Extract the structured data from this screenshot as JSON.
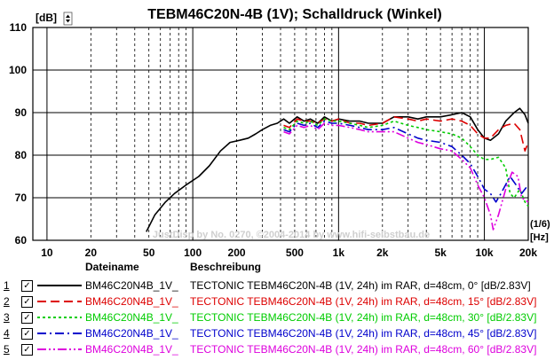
{
  "title": "TEBM46C20N-4B (1V); Schalldruck (Winkel)",
  "y_unit": "[dB]",
  "x_unit_top": "(1/6)",
  "x_unit_bottom": "[Hz]",
  "watermark": "JustDisp by No. 0270, ©2004-2014 by www.hifi-selbstbau.de",
  "legend_header": {
    "name": "Dateiname",
    "desc": "Beschreibung"
  },
  "chart_data": {
    "type": "line",
    "title": "TEBM46C20N-4B (1V); Schalldruck (Winkel)",
    "xlabel": "[Hz]",
    "ylabel": "[dB]",
    "xscale": "log",
    "xlim": [
      8,
      20000
    ],
    "ylim": [
      60,
      110
    ],
    "x_ticks": [
      {
        "v": 10,
        "label": "10"
      },
      {
        "v": 20,
        "label": "20"
      },
      {
        "v": 50,
        "label": "50"
      },
      {
        "v": 100,
        "label": "100"
      },
      {
        "v": 200,
        "label": "200"
      },
      {
        "v": 500,
        "label": "500"
      },
      {
        "v": 1000,
        "label": "1k"
      },
      {
        "v": 2000,
        "label": "2k"
      },
      {
        "v": 5000,
        "label": "5k"
      },
      {
        "v": 10000,
        "label": "10k"
      },
      {
        "v": 20000,
        "label": "20k"
      }
    ],
    "y_ticks": [
      60,
      70,
      80,
      90,
      100,
      110
    ],
    "grid": true,
    "series": [
      {
        "name": "BM46C20N4B_1V_",
        "description": "TECTONIC TEBM46C20N-4B (1V, 24h) im RAR, d=48cm, 0° [dB/2.83V]",
        "index": "1",
        "color": "#000000",
        "dash": "",
        "points": [
          [
            48,
            62
          ],
          [
            55,
            66
          ],
          [
            65,
            69
          ],
          [
            75,
            71
          ],
          [
            90,
            73
          ],
          [
            110,
            75
          ],
          [
            130,
            77.5
          ],
          [
            155,
            81
          ],
          [
            180,
            83
          ],
          [
            210,
            83.5
          ],
          [
            240,
            84
          ],
          [
            270,
            85
          ],
          [
            300,
            86
          ],
          [
            340,
            87
          ],
          [
            380,
            87.5
          ],
          [
            420,
            88.5
          ],
          [
            460,
            87.5
          ],
          [
            520,
            89
          ],
          [
            580,
            88
          ],
          [
            640,
            88.5
          ],
          [
            720,
            87.5
          ],
          [
            800,
            89
          ],
          [
            900,
            88
          ],
          [
            1000,
            88.5
          ],
          [
            1200,
            88
          ],
          [
            1400,
            88
          ],
          [
            1600,
            87.5
          ],
          [
            2000,
            87.5
          ],
          [
            2400,
            89
          ],
          [
            3000,
            89
          ],
          [
            3500,
            88.5
          ],
          [
            4000,
            89
          ],
          [
            5000,
            89
          ],
          [
            6000,
            89.5
          ],
          [
            7000,
            90
          ],
          [
            8000,
            89
          ],
          [
            9000,
            86
          ],
          [
            10000,
            84
          ],
          [
            11000,
            83.5
          ],
          [
            12500,
            85
          ],
          [
            14000,
            88
          ],
          [
            16000,
            90
          ],
          [
            17500,
            91
          ],
          [
            19000,
            89.5
          ],
          [
            20000,
            87.5
          ]
        ]
      },
      {
        "name": "BM46C20N4B_1V_",
        "description": "TECTONIC TEBM46C20N-4B (1V, 24h) im RAR, d=48cm, 15° [dB/2.83V]",
        "index": "2",
        "color": "#dd0000",
        "dash": "10,5",
        "points": [
          [
            420,
            87
          ],
          [
            460,
            86.5
          ],
          [
            520,
            88.5
          ],
          [
            580,
            88
          ],
          [
            640,
            88
          ],
          [
            720,
            87.5
          ],
          [
            800,
            88.5
          ],
          [
            900,
            88
          ],
          [
            1000,
            88.5
          ],
          [
            1200,
            87.5
          ],
          [
            1400,
            87.5
          ],
          [
            1600,
            87
          ],
          [
            2000,
            87.5
          ],
          [
            2400,
            89
          ],
          [
            3000,
            88.5
          ],
          [
            3500,
            88
          ],
          [
            4000,
            88.5
          ],
          [
            5000,
            88
          ],
          [
            6000,
            88.5
          ],
          [
            7000,
            88
          ],
          [
            8000,
            87
          ],
          [
            9000,
            85
          ],
          [
            10000,
            84
          ],
          [
            11000,
            84
          ],
          [
            12500,
            86
          ],
          [
            14000,
            87
          ],
          [
            16000,
            87.5
          ],
          [
            17500,
            86
          ],
          [
            19000,
            81
          ],
          [
            20000,
            83
          ]
        ]
      },
      {
        "name": "BM46C20N4B_1V_",
        "description": "TECTONIC TEBM46C20N-4B (1V, 24h) im RAR, d=48cm, 30° [dB/2.83V]",
        "index": "3",
        "color": "#00cc00",
        "dash": "3,3",
        "points": [
          [
            420,
            86.5
          ],
          [
            460,
            86
          ],
          [
            520,
            88
          ],
          [
            580,
            87.5
          ],
          [
            640,
            88
          ],
          [
            720,
            87
          ],
          [
            800,
            88.5
          ],
          [
            900,
            88
          ],
          [
            1000,
            88
          ],
          [
            1200,
            87.5
          ],
          [
            1400,
            87
          ],
          [
            1600,
            86.5
          ],
          [
            2000,
            87
          ],
          [
            2400,
            88
          ],
          [
            3000,
            87
          ],
          [
            3500,
            86.5
          ],
          [
            4000,
            86
          ],
          [
            5000,
            85.5
          ],
          [
            6000,
            85
          ],
          [
            7000,
            84
          ],
          [
            8000,
            82
          ],
          [
            9000,
            80
          ],
          [
            10000,
            79
          ],
          [
            11000,
            79
          ],
          [
            12500,
            79.5
          ],
          [
            14000,
            77
          ],
          [
            15000,
            71
          ],
          [
            16000,
            70
          ],
          [
            17500,
            72
          ],
          [
            19000,
            69
          ],
          [
            20000,
            68
          ]
        ]
      },
      {
        "name": "BM46C20N4B_1V_",
        "description": "TECTONIC TEBM46C20N-4B (1V, 24h) im RAR, d=48cm, 45° [dB/2.83V]",
        "index": "4",
        "color": "#0000cc",
        "dash": "10,4,2,4",
        "points": [
          [
            420,
            86
          ],
          [
            460,
            85.5
          ],
          [
            520,
            87.5
          ],
          [
            580,
            87
          ],
          [
            640,
            87.5
          ],
          [
            720,
            86.5
          ],
          [
            800,
            88
          ],
          [
            900,
            87.5
          ],
          [
            1000,
            87.5
          ],
          [
            1200,
            87
          ],
          [
            1400,
            86.5
          ],
          [
            1600,
            86
          ],
          [
            2000,
            86
          ],
          [
            2400,
            86.5
          ],
          [
            3000,
            85
          ],
          [
            3500,
            84
          ],
          [
            4000,
            83.5
          ],
          [
            5000,
            83
          ],
          [
            6000,
            82
          ],
          [
            7000,
            80
          ],
          [
            8000,
            78
          ],
          [
            9000,
            75
          ],
          [
            10000,
            72
          ],
          [
            11000,
            71
          ],
          [
            12000,
            69
          ],
          [
            13000,
            71
          ],
          [
            15000,
            75
          ],
          [
            16500,
            73
          ],
          [
            18000,
            71
          ],
          [
            20000,
            73
          ]
        ]
      },
      {
        "name": "BM46C20N4B_1V_",
        "description": "TECTONIC TEBM46C20N-4B (1V, 24h) im RAR, d=48cm, 60° [dB/2.83V]",
        "index": "5",
        "color": "#dd00dd",
        "dash": "10,3,2,3,2,3",
        "points": [
          [
            420,
            85.5
          ],
          [
            460,
            85
          ],
          [
            520,
            87
          ],
          [
            580,
            86.5
          ],
          [
            640,
            87
          ],
          [
            720,
            86
          ],
          [
            800,
            87.5
          ],
          [
            900,
            87
          ],
          [
            1000,
            87
          ],
          [
            1200,
            86.5
          ],
          [
            1400,
            86
          ],
          [
            1600,
            85.5
          ],
          [
            2000,
            85.5
          ],
          [
            2400,
            85.5
          ],
          [
            3000,
            84
          ],
          [
            3500,
            83
          ],
          [
            4000,
            82.5
          ],
          [
            5000,
            81.5
          ],
          [
            6000,
            81
          ],
          [
            7000,
            79
          ],
          [
            8000,
            77
          ],
          [
            9000,
            73
          ],
          [
            10000,
            70
          ],
          [
            11000,
            66
          ],
          [
            11500,
            62.5
          ],
          [
            12500,
            66
          ],
          [
            14000,
            72
          ],
          [
            15500,
            76
          ],
          [
            17000,
            75
          ],
          [
            18000,
            70
          ],
          [
            20000,
            69
          ]
        ]
      }
    ]
  }
}
